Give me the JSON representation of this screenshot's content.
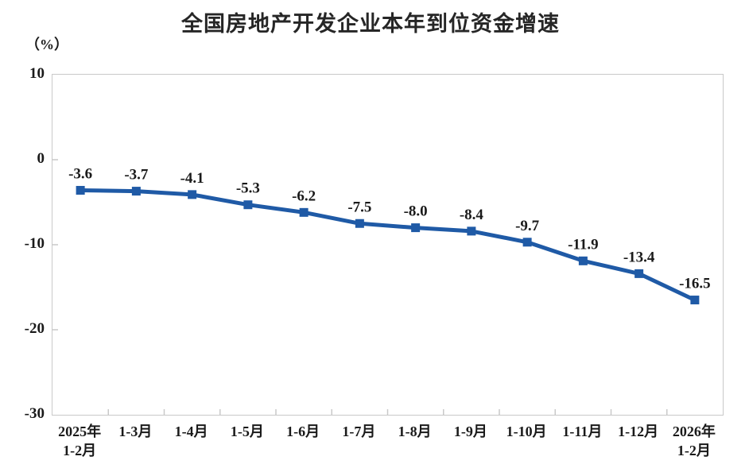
{
  "chart_data": {
    "type": "line",
    "title": "全国房地产开发企业本年到位资金增速",
    "unit_label": "（%）",
    "xlabel": "",
    "ylabel": "（%）",
    "categories": [
      "2025年\n1-2月",
      "1-3月",
      "1-4月",
      "1-5月",
      "1-6月",
      "1-7月",
      "1-8月",
      "1-9月",
      "1-10月",
      "1-11月",
      "1-12月",
      "2026年\n1-2月"
    ],
    "values": [
      -3.6,
      -3.7,
      -4.1,
      -5.3,
      -6.2,
      -7.5,
      -8.0,
      -8.4,
      -9.7,
      -11.9,
      -13.4,
      -16.5
    ],
    "data_labels": [
      "-3.6",
      "-3.7",
      "-4.1",
      "-5.3",
      "-6.2",
      "-7.5",
      "-8.0",
      "-8.4",
      "-9.7",
      "-11.9",
      "-13.4",
      "-16.5"
    ],
    "ylim": [
      -30,
      10
    ],
    "yticks": [
      10,
      0,
      -10,
      -20,
      -30
    ],
    "grid": false,
    "legend": "none",
    "marker": "square",
    "style": {
      "line_color": "#1F5AA6",
      "text_color": "#1a1a1a",
      "title_color": "#262626",
      "axis_color": "#c9c9c9",
      "background": "#ffffff"
    }
  }
}
